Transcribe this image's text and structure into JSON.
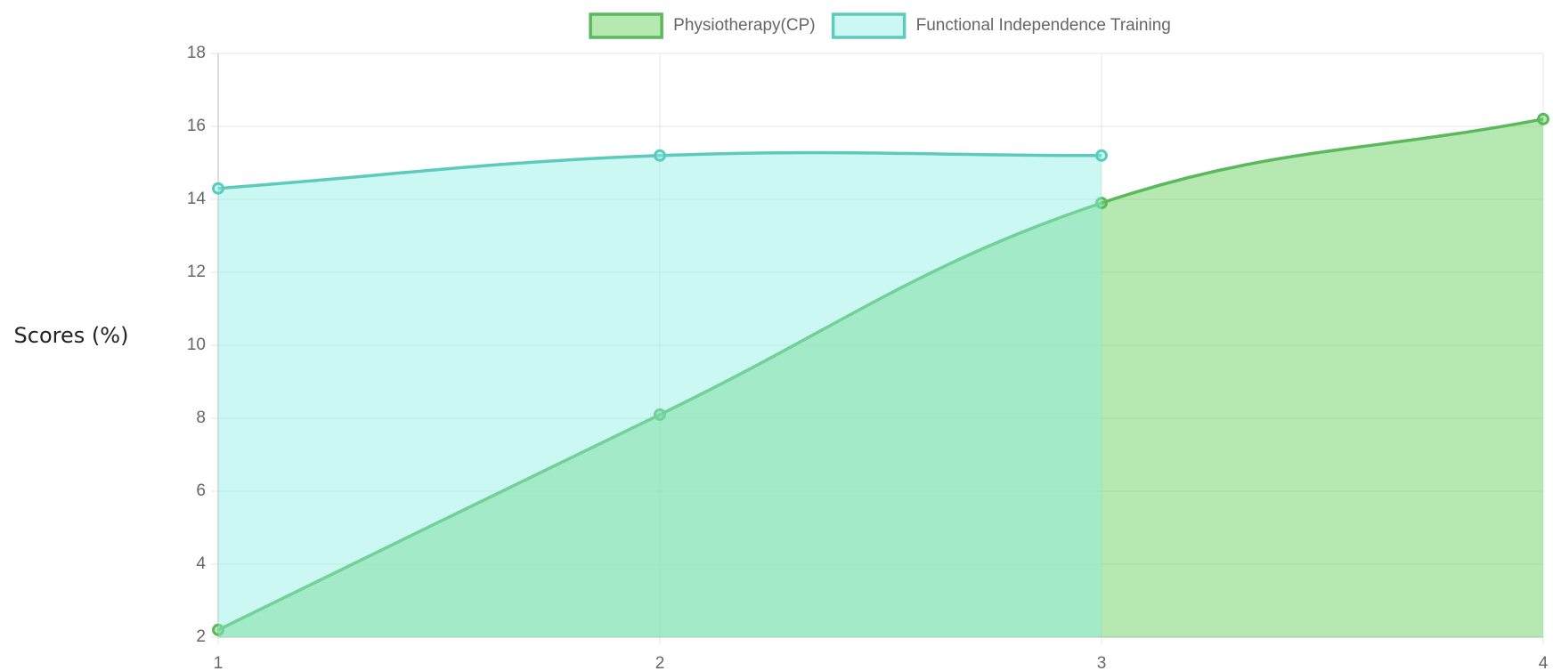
{
  "chart_data": {
    "type": "line",
    "y_label": "Scores (%)",
    "x": [
      1,
      2,
      3,
      4
    ],
    "xlim": [
      1,
      4
    ],
    "xticks": [
      1,
      2,
      3,
      4
    ],
    "ylim": [
      2,
      18
    ],
    "yticks": [
      2,
      4,
      6,
      8,
      10,
      12,
      14,
      16,
      18
    ],
    "grid": true,
    "legend": "top",
    "series": [
      {
        "name": "Physiotherapy(CP)",
        "color": "#5cb85c",
        "fill": "rgba(110,210,100,0.5)",
        "values": [
          2.2,
          8.1,
          13.9,
          16.2
        ]
      },
      {
        "name": "Functional Independence Training",
        "color": "#5ccbbd",
        "fill": "rgba(140,240,228,0.45)",
        "values": [
          14.3,
          15.2,
          15.2,
          null
        ]
      }
    ]
  }
}
